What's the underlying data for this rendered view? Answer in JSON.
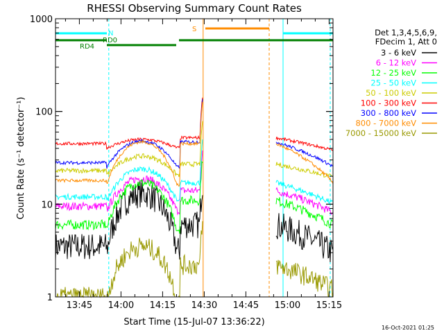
{
  "chart_data": {
    "type": "line",
    "title": "RHESSI Observing Summary Count Rates",
    "xlabel": "Start Time (15-Jul-07 13:36:22)",
    "ylabel": "Count Rate (s⁻¹ detector⁻¹)",
    "ylog": true,
    "ylim": [
      1,
      1000
    ],
    "xlim_minutes": [
      0,
      100
    ],
    "x_ticks": [
      {
        "t": 8.6,
        "label": "13:45"
      },
      {
        "t": 23.6,
        "label": "14:00"
      },
      {
        "t": 38.6,
        "label": "14:15"
      },
      {
        "t": 53.6,
        "label": "14:30"
      },
      {
        "t": 68.6,
        "label": "14:45"
      },
      {
        "t": 83.6,
        "label": "15:00"
      },
      {
        "t": 98.6,
        "label": "15:15"
      }
    ],
    "y_ticks": [
      {
        "v": 1,
        "label": "1"
      },
      {
        "v": 10,
        "label": "10"
      },
      {
        "v": 100,
        "label": "100"
      },
      {
        "v": 1000,
        "label": "1000"
      }
    ],
    "legend": {
      "placement": "right",
      "header": [
        "Det 1,3,4,5,6,9,",
        "FDecim 1, Att 0"
      ]
    },
    "series": [
      {
        "name": "3 - 6 keV",
        "color": "#000000",
        "base": 3.5,
        "peak": 13,
        "post": 6,
        "tail": 3.5,
        "noise": 0.35
      },
      {
        "name": "6 - 12 keV",
        "color": "#ff00ff",
        "base": 9.5,
        "peak": 19,
        "post": 14,
        "tail": 9.5,
        "noise": 0.1
      },
      {
        "name": "12 - 25 keV",
        "color": "#00ff00",
        "base": 6,
        "peak": 17,
        "post": 11,
        "tail": 7,
        "noise": 0.12
      },
      {
        "name": "25 - 50 keV",
        "color": "#00ffff",
        "base": 12,
        "peak": 24,
        "post": 17,
        "tail": 12,
        "noise": 0.07
      },
      {
        "name": "50 - 100 keV",
        "color": "#cccc00",
        "base": 23,
        "peak": 33,
        "post": 27,
        "tail": 23,
        "noise": 0.06
      },
      {
        "name": "100 - 300 keV",
        "color": "#ff0000",
        "base": 45,
        "peak": 50,
        "post": 52,
        "tail": 45,
        "noise": 0.04
      },
      {
        "name": "300 - 800 keV",
        "color": "#0000ff",
        "base": 28,
        "peak": 48,
        "post": 47,
        "tail": 30,
        "noise": 0.04
      },
      {
        "name": "800 - 7000 keV",
        "color": "#ff8c00",
        "base": 18,
        "peak": 47,
        "post": 45,
        "tail": 20,
        "noise": 0.04
      },
      {
        "name": "7000 - 15000 keV",
        "color": "#999900",
        "base": 1,
        "peak": 3.5,
        "post": 2.2,
        "tail": 1.4,
        "noise": 0.25
      }
    ],
    "gaps_minutes": [
      [
        18.5,
        53.0
      ],
      [
        53.0,
        79.8
      ]
    ],
    "flags": [
      {
        "label": "N",
        "color": "#00ffff",
        "segments": [
          [
            0,
            18.5
          ],
          [
            82,
            100
          ]
        ]
      },
      {
        "label": "S",
        "color": "#ff8c00",
        "segments": [
          [
            54,
            77
          ]
        ]
      },
      {
        "label": "RD0",
        "color": "#008000",
        "segments": [
          [
            0,
            18.5
          ],
          [
            44.5,
            77
          ],
          [
            77,
            92
          ],
          [
            92,
            100
          ]
        ]
      },
      {
        "label": "RD4",
        "color": "#008000",
        "segments": [
          [
            18.5,
            43.5
          ]
        ]
      }
    ],
    "orbit_markers_minutes": [
      {
        "t": 0,
        "color": "#00ffff",
        "style": "solid"
      },
      {
        "t": 19.2,
        "color": "#00ffff",
        "style": "dashed"
      },
      {
        "t": 53.2,
        "color": "#ff8c00",
        "style": "solid"
      },
      {
        "t": 77.0,
        "color": "#ff8c00",
        "style": "dashed"
      },
      {
        "t": 82.0,
        "color": "#00ffff",
        "style": "solid"
      },
      {
        "t": 99.0,
        "color": "#00ffff",
        "style": "dashed"
      }
    ]
  },
  "footer_date": "16-Oct-2021 01:25"
}
